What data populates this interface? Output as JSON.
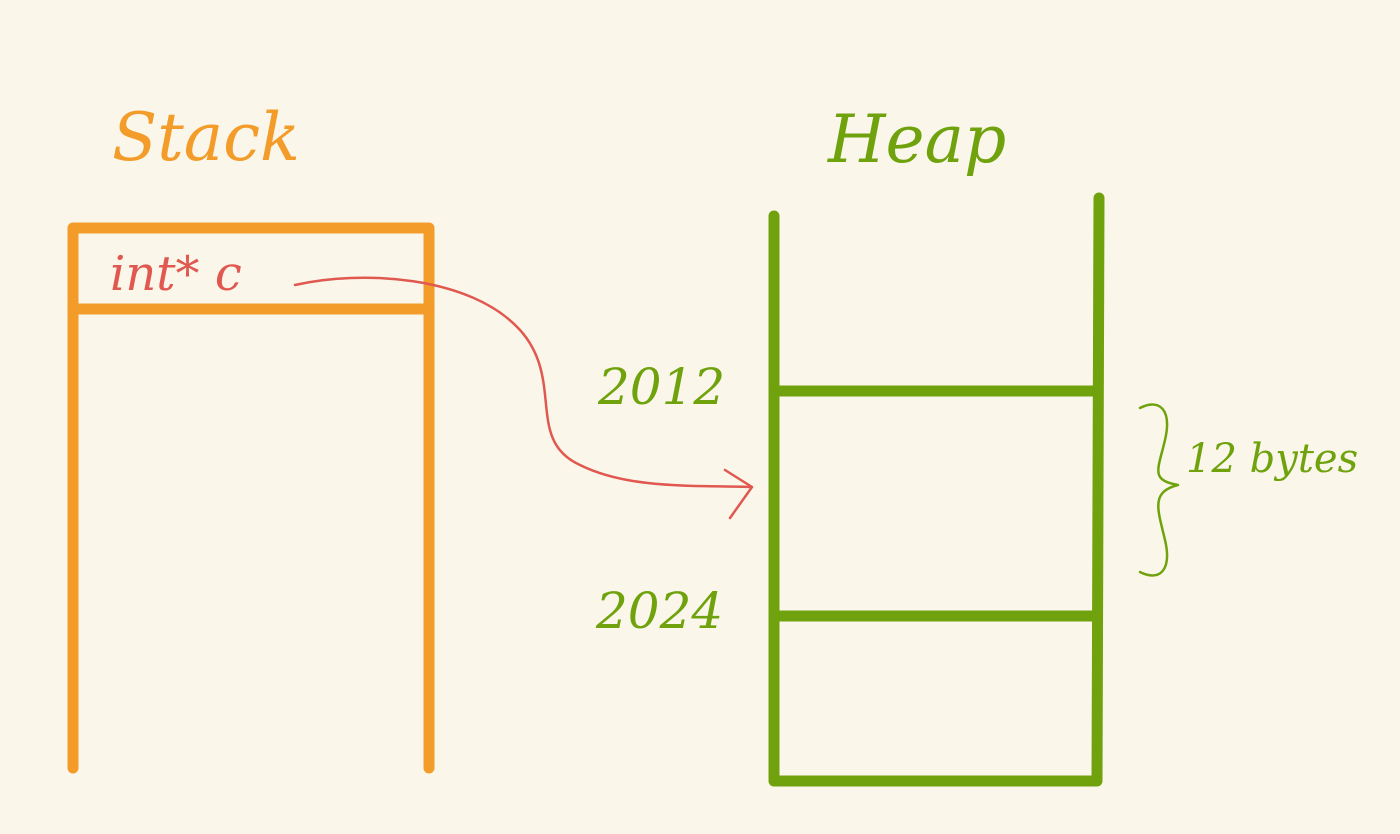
{
  "stack": {
    "title": "Stack",
    "cell_label": "int* c",
    "color": "#f39c2a"
  },
  "heap": {
    "title": "Heap",
    "address_top": "2012",
    "address_bottom": "2024",
    "size_note": "12 bytes",
    "color": "#6fa20c"
  },
  "pointer_arrow": {
    "color": "#e0584f"
  },
  "background_color": "#faf7ea"
}
